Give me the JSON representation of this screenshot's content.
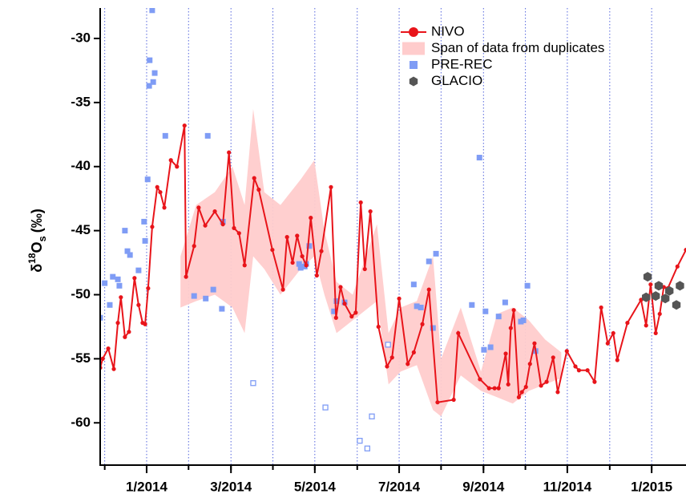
{
  "chart_data": {
    "type": "line",
    "ylabel": [
      "δ",
      "18",
      "O",
      "s",
      "(‰)"
    ],
    "xlim": [
      2013.908,
      2015.068
    ],
    "ylim": [
      -63.3,
      -27.75
    ],
    "yticks": [
      -30,
      -35,
      -40,
      -45,
      -50,
      -55,
      -60
    ],
    "xticks": [
      {
        "value": 2014.0,
        "label": "1/2014"
      },
      {
        "value": 2014.167,
        "label": "3/2014"
      },
      {
        "value": 2014.333,
        "label": "5/2014"
      },
      {
        "value": 2014.5,
        "label": "7/2014"
      },
      {
        "value": 2014.667,
        "label": "9/2014"
      },
      {
        "value": 2014.833,
        "label": "11/2014"
      },
      {
        "value": 2015.0,
        "label": "1/2015"
      }
    ],
    "xgrid": [
      2013.917,
      2014.0,
      2014.083,
      2014.167,
      2014.25,
      2014.333,
      2014.417,
      2014.5,
      2014.583,
      2014.667,
      2014.75,
      2014.833,
      2014.917,
      2015.0
    ],
    "grid": true,
    "legend": "upper right",
    "series": [
      {
        "name": "NIVO",
        "type": "line",
        "color": "#e8141a",
        "x": [
          2013.908,
          2013.913,
          2013.924,
          2013.935,
          2013.943,
          2013.949,
          2013.957,
          2013.965,
          2013.976,
          2013.984,
          2013.992,
          2013.997,
          2014.003,
          2014.011,
          2014.021,
          2014.027,
          2014.035,
          2014.048,
          2014.06,
          2014.075,
          2014.078,
          2014.094,
          2014.103,
          2014.116,
          2014.135,
          2014.151,
          2014.163,
          2014.173,
          2014.183,
          2014.194,
          2014.213,
          2014.222,
          2014.249,
          2014.27,
          2014.278,
          2014.289,
          2014.298,
          2014.308,
          2014.316,
          2014.325,
          2014.337,
          2014.346,
          2014.365,
          2014.375,
          2014.384,
          2014.392,
          2014.406,
          2014.414,
          2014.424,
          2014.432,
          2014.443,
          2014.459,
          2014.476,
          2014.486,
          2014.5,
          2014.517,
          2014.529,
          2014.546,
          2014.559,
          2014.576,
          2014.608,
          2014.617,
          2014.66,
          2014.678,
          2014.689,
          2014.697,
          2014.711,
          2014.716,
          2014.721,
          2014.727,
          2014.737,
          2014.743,
          2014.751,
          2014.759,
          2014.768,
          2014.781,
          2014.792,
          2014.805,
          2014.814,
          2014.832,
          2014.849,
          2014.856,
          2014.873,
          2014.887,
          2014.9,
          2014.913,
          2014.924,
          2014.932,
          2014.952,
          2014.979,
          2014.989,
          2014.998,
          2015.008,
          2015.016,
          2015.024,
          2015.032,
          2015.051,
          2015.068
        ],
        "values": [
          -55.7,
          -55,
          -54.2,
          -55.8,
          -52.2,
          -50.2,
          -53.3,
          -52.9,
          -48.7,
          -50.8,
          -52.2,
          -52.3,
          -49.5,
          -44.7,
          -41.6,
          -42,
          -43.2,
          -39.5,
          -40,
          -36.8,
          -48.6,
          -46.2,
          -43.2,
          -44.6,
          -43.5,
          -44.5,
          -38.9,
          -44.8,
          -45.2,
          -47.7,
          -40.9,
          -41.8,
          -46.5,
          -49.6,
          -45.5,
          -47.5,
          -45.4,
          -47,
          -47.7,
          -44,
          -48.5,
          -46.6,
          -41.6,
          -51.8,
          -49.4,
          -50.7,
          -51.7,
          -51.4,
          -42.8,
          -48,
          -43.5,
          -52.5,
          -55.6,
          -54.9,
          -50.3,
          -55.4,
          -54.5,
          -52.3,
          -49.6,
          -58.4,
          -58.2,
          -53,
          -56.6,
          -57.3,
          -57.3,
          -57.3,
          -54.6,
          -57,
          -52.6,
          -51.2,
          -58,
          -57.6,
          -57.2,
          -55.4,
          -53.8,
          -57.1,
          -56.8,
          -54.9,
          -57.6,
          -54.4,
          -55.6,
          -55.9,
          -55.9,
          -56.8,
          -51,
          -53.8,
          -53,
          -55.1,
          -52.2,
          -50.4,
          -52.4,
          -49.2,
          -53,
          -51.5,
          -49.4,
          -49.5,
          -47.8,
          -46.5
        ]
      },
      {
        "name": "Span of data from duplicates",
        "type": "band",
        "color": "#ffcccc",
        "x": [
          2014.067,
          2014.098,
          2014.135,
          2014.17,
          2014.194,
          2014.211,
          2014.233,
          2014.265,
          2014.305,
          2014.332,
          2014.352,
          2014.376,
          2014.408,
          2014.456,
          2014.479,
          2014.503,
          2014.535,
          2014.567,
          2014.583,
          2014.622,
          2014.662,
          2014.694,
          2014.725,
          2014.757,
          2014.789,
          2014.821
        ],
        "lower": [
          -51,
          -50.5,
          -50,
          -51,
          -53,
          -47,
          -48,
          -50,
          -48,
          -47,
          -50,
          -53,
          -52,
          -50.5,
          -57,
          -56,
          -55.5,
          -59,
          -59.5,
          -56.3,
          -57.5,
          -58,
          -58.5,
          -57.5,
          -57,
          -56.5
        ],
        "upper": [
          -47,
          -43,
          -42,
          -40,
          -43,
          -35.5,
          -42,
          -43,
          -41,
          -39.5,
          -45,
          -49,
          -50,
          -44.5,
          -53,
          -51,
          -50.5,
          -47,
          -55,
          -51,
          -56,
          -51.5,
          -51,
          -52,
          -53.5,
          -54.5
        ]
      },
      {
        "name": "PRE-REC",
        "type": "scatter",
        "marker": "square",
        "color": "#7f9cf5",
        "x": [
          2013.908,
          2013.917,
          2013.927,
          2013.933,
          2013.943,
          2013.946,
          2013.957,
          2013.962,
          2013.967,
          2013.984,
          2013.995,
          2013.997,
          2014.002,
          2014.005,
          2014.006,
          2014.011,
          2014.013,
          2014.016,
          2014.037,
          2014.094,
          2014.117,
          2014.121,
          2014.132,
          2014.149,
          2014.151,
          2014.302,
          2014.305,
          2014.313,
          2014.316,
          2014.322,
          2014.371,
          2014.376,
          2014.392,
          2014.529,
          2014.535,
          2014.543,
          2014.559,
          2014.567,
          2014.573,
          2014.644,
          2014.659,
          2014.668,
          2014.671,
          2014.681,
          2014.697,
          2014.71,
          2014.741,
          2014.746,
          2014.754,
          2014.77
        ],
        "values": [
          -51.8,
          -49.1,
          -50.8,
          -48.6,
          -48.8,
          -49.3,
          -45,
          -46.6,
          -46.9,
          -48.1,
          -44.3,
          -45.8,
          -41,
          -33.7,
          -31.7,
          -27.8,
          -33.4,
          -32.7,
          -37.6,
          -50.1,
          -50.3,
          -37.6,
          -49.6,
          -51.1,
          -44.3,
          -47.6,
          -47.9,
          -47.8,
          -47.6,
          -46.2,
          -51.3,
          -50.5,
          -50.6,
          -49.2,
          -50.9,
          -51,
          -47.4,
          -52.6,
          -46.8,
          -50.8,
          -39.3,
          -54.3,
          -51.3,
          -54.1,
          -51.7,
          -50.6,
          -52.1,
          -52,
          -49.3,
          -54.4
        ]
      },
      {
        "type": "scatter",
        "marker": "open-square",
        "color": "#7f9cf5",
        "x": [
          2014.211,
          2014.354,
          2014.422,
          2014.437,
          2014.446,
          2014.478
        ],
        "values": [
          -56.9,
          -58.8,
          -61.4,
          -62,
          -59.5,
          -53.9
        ]
      },
      {
        "name": "GLACIO",
        "type": "scatter",
        "marker": "hexagon",
        "color": "#555555",
        "x": [
          2014.992,
          2014.989,
          2015.008,
          2015.014,
          2015.027,
          2015.035,
          2015.049,
          2015.056
        ],
        "values": [
          -48.6,
          -50.2,
          -50.1,
          -49.3,
          -50.3,
          -49.7,
          -50.8,
          -49.3
        ]
      }
    ]
  }
}
